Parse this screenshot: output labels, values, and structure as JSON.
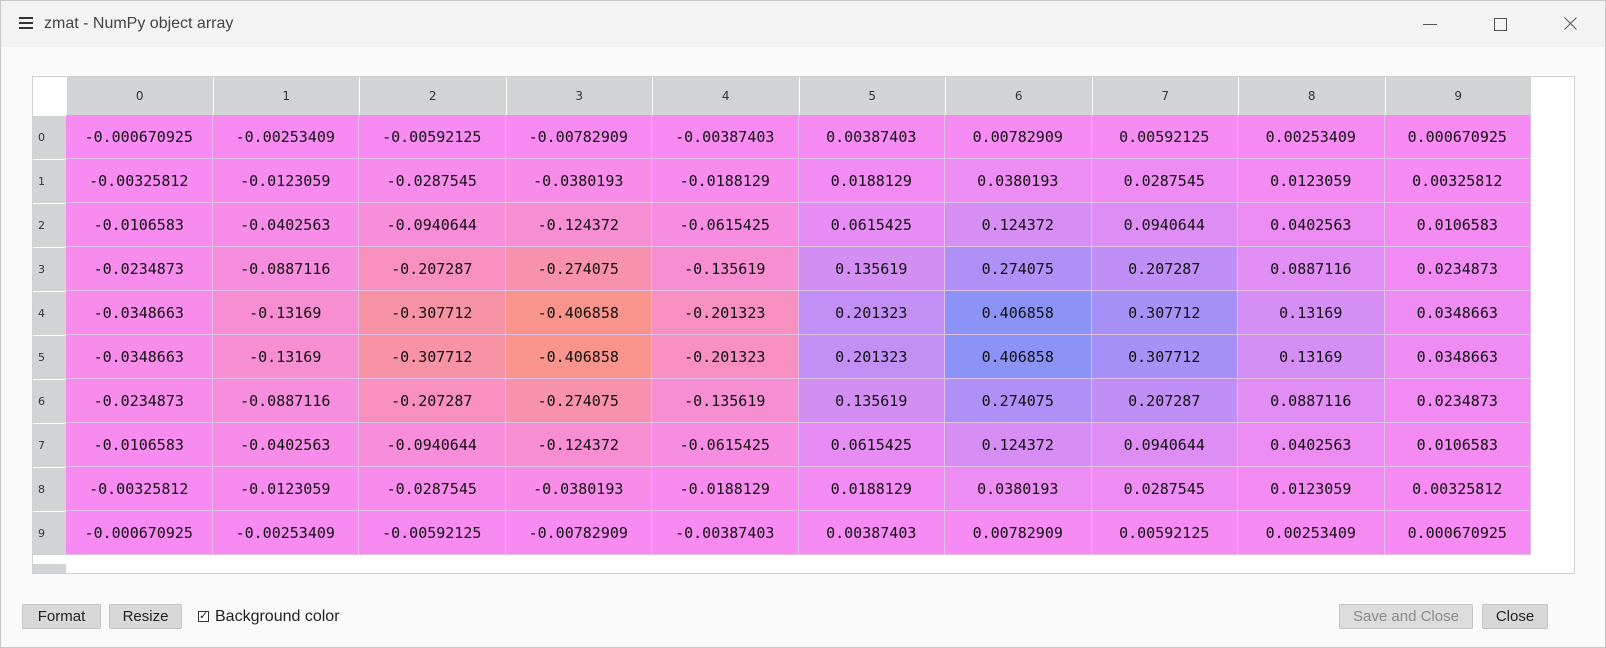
{
  "window": {
    "title": "zmat - NumPy object array"
  },
  "table": {
    "columns": [
      "0",
      "1",
      "2",
      "3",
      "4",
      "5",
      "6",
      "7",
      "8",
      "9"
    ],
    "rows": [
      {
        "label": "0",
        "cells": [
          "-0.000670925",
          "-0.00253409",
          "-0.00592125",
          "-0.00782909",
          "-0.00387403",
          "0.00387403",
          "0.00782909",
          "0.00592125",
          "0.00253409",
          "0.000670925"
        ]
      },
      {
        "label": "1",
        "cells": [
          "-0.00325812",
          "-0.0123059",
          "-0.0287545",
          "-0.0380193",
          "-0.0188129",
          "0.0188129",
          "0.0380193",
          "0.0287545",
          "0.0123059",
          "0.00325812"
        ]
      },
      {
        "label": "2",
        "cells": [
          "-0.0106583",
          "-0.0402563",
          "-0.0940644",
          "-0.124372",
          "-0.0615425",
          "0.0615425",
          "0.124372",
          "0.0940644",
          "0.0402563",
          "0.0106583"
        ]
      },
      {
        "label": "3",
        "cells": [
          "-0.0234873",
          "-0.0887116",
          "-0.207287",
          "-0.274075",
          "-0.135619",
          "0.135619",
          "0.274075",
          "0.207287",
          "0.0887116",
          "0.0234873"
        ]
      },
      {
        "label": "4",
        "cells": [
          "-0.0348663",
          "-0.13169",
          "-0.307712",
          "-0.406858",
          "-0.201323",
          "0.201323",
          "0.406858",
          "0.307712",
          "0.13169",
          "0.0348663"
        ]
      },
      {
        "label": "5",
        "cells": [
          "-0.0348663",
          "-0.13169",
          "-0.307712",
          "-0.406858",
          "-0.201323",
          "0.201323",
          "0.406858",
          "0.307712",
          "0.13169",
          "0.0348663"
        ]
      },
      {
        "label": "6",
        "cells": [
          "-0.0234873",
          "-0.0887116",
          "-0.207287",
          "-0.274075",
          "-0.135619",
          "0.135619",
          "0.274075",
          "0.207287",
          "0.0887116",
          "0.0234873"
        ]
      },
      {
        "label": "7",
        "cells": [
          "-0.0106583",
          "-0.0402563",
          "-0.0940644",
          "-0.124372",
          "-0.0615425",
          "0.0615425",
          "0.124372",
          "0.0940644",
          "0.0402563",
          "0.0106583"
        ]
      },
      {
        "label": "8",
        "cells": [
          "-0.00325812",
          "-0.0123059",
          "-0.0287545",
          "-0.0380193",
          "-0.0188129",
          "0.0188129",
          "0.0380193",
          "0.0287545",
          "0.0123059",
          "0.00325812"
        ]
      },
      {
        "label": "9",
        "cells": [
          "-0.000670925",
          "-0.00253409",
          "-0.00592125",
          "-0.00782909",
          "-0.00387403",
          "0.00387403",
          "0.00782909",
          "0.00592125",
          "0.00253409",
          "0.000670925"
        ]
      }
    ]
  },
  "colors": {
    "neutral": "#f78bf3",
    "negative_extreme": "#f8948c",
    "positive_extreme": "#8c93f7"
  },
  "footer": {
    "format_label": "Format",
    "resize_label": "Resize",
    "background_color_label": "Background color",
    "background_color_checked": true,
    "save_close_label": "Save and Close",
    "close_label": "Close"
  }
}
